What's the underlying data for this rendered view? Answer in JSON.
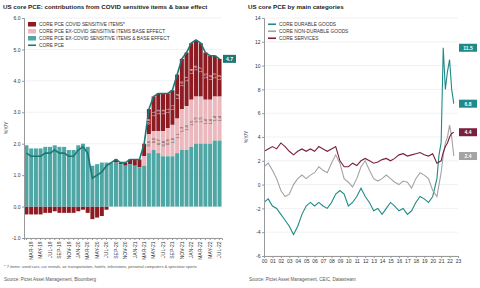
{
  "chart_data": [
    {
      "type": "bar",
      "title": "US core PCE: contributions from COVID sensitive items & base effect",
      "ylabel": "%Y/Y",
      "footnote": "* 7 items: used cars, car rentals, air transportation, hotels, televisions, personal computers & spectator sports",
      "source": "Source: Pictet Asset Management, Bloomberg",
      "stacked": true,
      "grid": true,
      "legend": "top-left",
      "data_labels": true,
      "ylim": [
        -1,
        6
      ],
      "yticks": [
        {
          "value": -1,
          "label": "-1.0"
        },
        {
          "value": 0,
          "label": "0.0"
        },
        {
          "value": 1,
          "label": "1.0"
        },
        {
          "value": 2,
          "label": "2.0"
        },
        {
          "value": 3,
          "label": "3.0"
        },
        {
          "value": 4,
          "label": "4.0"
        },
        {
          "value": 5,
          "label": "5.0"
        },
        {
          "value": 6,
          "label": "6.0"
        }
      ],
      "categories": [
        null,
        "MAR-19",
        null,
        "MAY-19",
        null,
        "JUL-19",
        null,
        "SEP-19",
        null,
        "NOV-19",
        null,
        "JAN-20",
        null,
        "MAR-20",
        null,
        "MAY-20",
        null,
        "JUL-20",
        null,
        "SEP-20",
        null,
        "NOV-20",
        null,
        "JAN-21",
        null,
        "MAR-21",
        null,
        "MAY-21",
        null,
        "JUL-21",
        null,
        "SEP-21",
        null,
        "NOV-21",
        null,
        "JAN-22",
        null,
        "MAR-22",
        null,
        "MAY-22",
        null,
        "JUL-22"
      ],
      "series": [
        {
          "name": "CORE PCE COVID SENSITIVE ITEMS*",
          "color": "#8e1b22",
          "type": "bar",
          "values": [
            -0.25,
            -0.25,
            -0.25,
            -0.25,
            -0.2,
            -0.2,
            -0.15,
            -0.2,
            -0.2,
            -0.2,
            -0.2,
            -0.15,
            -0.1,
            -0.2,
            -0.4,
            -0.35,
            -0.3,
            -0.1,
            0.0,
            0.1,
            0.05,
            0.1,
            0.15,
            0.2,
            0.25,
            0.4,
            0.8,
            1.1,
            1.2,
            1.2,
            1.1,
            1.1,
            1.4,
            1.6,
            1.7,
            1.8,
            1.8,
            1.7,
            1.5,
            1.4,
            1.3,
            1.2
          ],
          "value_labels": [
            null,
            null,
            null,
            null,
            null,
            null,
            null,
            null,
            null,
            null,
            null,
            null,
            null,
            null,
            null,
            null,
            null,
            null,
            null,
            null,
            null,
            null,
            null,
            null,
            null,
            null,
            "0.8",
            "1.1",
            "1.2",
            "1.2",
            "1.1",
            "1.1",
            "1.4",
            "1.6",
            "1.7",
            "1.8",
            "1.8",
            "1.7",
            "1.5",
            "1.4",
            "1.3",
            "1.2"
          ]
        },
        {
          "name": "CORE PCE EX-COVID SENSITIVE ITEMS BASE EFFECT",
          "color": "#eab8bd",
          "type": "bar",
          "values": [
            0,
            0,
            0,
            0,
            0,
            0,
            0,
            0,
            0,
            0,
            0,
            0,
            0,
            0,
            0,
            0,
            0,
            0,
            0,
            0,
            0,
            0,
            0,
            0,
            0,
            0.3,
            0.6,
            0.6,
            0.7,
            0.8,
            0.9,
            1.0,
            1.1,
            1.3,
            1.4,
            1.5,
            1.5,
            1.5,
            1.4,
            1.4,
            1.4,
            1.4
          ],
          "value_labels": [
            null,
            null,
            null,
            null,
            null,
            null,
            null,
            null,
            null,
            null,
            null,
            null,
            null,
            null,
            null,
            null,
            null,
            null,
            null,
            null,
            null,
            null,
            null,
            null,
            null,
            null,
            "0.6",
            "0.6",
            "0.7",
            "0.8",
            "0.9",
            "1.0",
            "1.1",
            "1.3",
            "1.4",
            "1.5",
            "1.5",
            "1.5",
            "1.4",
            "1.4",
            "1.4",
            "1.4"
          ]
        },
        {
          "name": "CORE PCE EX-COVID SENSITIVE ITEMS & BASE EFFECT",
          "color": "#4ea7a5",
          "type": "bar",
          "values": [
            1.95,
            1.85,
            1.85,
            1.85,
            1.9,
            1.9,
            1.95,
            1.9,
            1.9,
            1.8,
            1.8,
            1.95,
            2.0,
            1.9,
            1.3,
            1.35,
            1.4,
            1.4,
            1.4,
            1.4,
            1.35,
            1.3,
            1.35,
            1.3,
            1.25,
            1.3,
            1.7,
            1.8,
            1.7,
            1.6,
            1.6,
            1.6,
            1.7,
            1.8,
            1.8,
            1.9,
            2.0,
            2.0,
            2.0,
            2.0,
            2.1,
            2.1
          ]
        },
        {
          "name": "CORE PCE",
          "color": "#1d7774",
          "type": "line",
          "values": [
            1.7,
            1.6,
            1.6,
            1.6,
            1.7,
            1.7,
            1.8,
            1.7,
            1.7,
            1.6,
            1.6,
            1.8,
            1.9,
            1.7,
            0.9,
            1.0,
            1.1,
            1.3,
            1.4,
            1.5,
            1.4,
            1.4,
            1.5,
            1.5,
            1.5,
            2.0,
            3.1,
            3.5,
            3.6,
            3.6,
            3.6,
            3.7,
            4.2,
            4.7,
            4.9,
            5.2,
            5.3,
            5.2,
            4.9,
            4.8,
            4.8,
            4.7
          ]
        }
      ],
      "annotations": [
        {
          "text": "4.7",
          "y": 4.7,
          "color": "#1d7774"
        }
      ]
    },
    {
      "type": "line",
      "title": "US core PCE by main categories",
      "ylabel": "%Y/Y",
      "source": "Source: Pictet Asset Management, CEIC, Datastream",
      "grid": true,
      "legend": "top-left",
      "xlim": [
        2000,
        2023
      ],
      "xticks": [
        {
          "value": 2000,
          "label": "00"
        },
        {
          "value": 2001,
          "label": "01"
        },
        {
          "value": 2002,
          "label": "02"
        },
        {
          "value": 2003,
          "label": "03"
        },
        {
          "value": 2004,
          "label": "04"
        },
        {
          "value": 2005,
          "label": "05"
        },
        {
          "value": 2006,
          "label": "06"
        },
        {
          "value": 2007,
          "label": "07"
        },
        {
          "value": 2008,
          "label": "08"
        },
        {
          "value": 2009,
          "label": "09"
        },
        {
          "value": 2010,
          "label": "10"
        },
        {
          "value": 2011,
          "label": "11"
        },
        {
          "value": 2012,
          "label": "12"
        },
        {
          "value": 2013,
          "label": "13"
        },
        {
          "value": 2014,
          "label": "14"
        },
        {
          "value": 2015,
          "label": "15"
        },
        {
          "value": 2016,
          "label": "16"
        },
        {
          "value": 2017,
          "label": "17"
        },
        {
          "value": 2018,
          "label": "18"
        },
        {
          "value": 2019,
          "label": "19"
        },
        {
          "value": 2020,
          "label": "20"
        },
        {
          "value": 2021,
          "label": "21"
        },
        {
          "value": 2022,
          "label": "22"
        },
        {
          "value": 2023,
          "label": "23"
        }
      ],
      "ylim": [
        -6,
        14
      ],
      "yticks": [
        -6,
        -4,
        -2,
        0,
        2,
        4,
        6,
        8,
        10,
        12,
        14
      ],
      "x": [
        2000,
        2000.5,
        2001,
        2001.5,
        2002,
        2002.5,
        2003,
        2003.5,
        2004,
        2004.5,
        2005,
        2005.5,
        2006,
        2006.5,
        2007,
        2007.5,
        2008,
        2008.5,
        2009,
        2009.5,
        2010,
        2010.5,
        2011,
        2011.5,
        2012,
        2012.5,
        2013,
        2013.5,
        2014,
        2014.5,
        2015,
        2015.5,
        2016,
        2016.5,
        2017,
        2017.5,
        2018,
        2018.5,
        2019,
        2019.5,
        2020,
        2020.5,
        2020.75,
        2021,
        2021.25,
        2021.5,
        2021.75,
        2022,
        2022.25,
        2022.5
      ],
      "series": [
        {
          "name": "CORE DURABLE GOODS",
          "color": "#1f8a87",
          "values": [
            -1.5,
            -1.2,
            -1.8,
            -2.0,
            -2.5,
            -3.0,
            -3.5,
            -4.2,
            -3.5,
            -2.5,
            -1.8,
            -1.5,
            -1.8,
            -1.5,
            -1.8,
            -2.0,
            -1.5,
            -0.8,
            -0.5,
            -0.8,
            -1.8,
            -1.5,
            -1.0,
            -0.3,
            -1.0,
            -1.5,
            -2.2,
            -2.0,
            -2.5,
            -2.0,
            -1.5,
            -1.8,
            -2.2,
            -2.0,
            -2.5,
            -2.2,
            -1.5,
            -1.0,
            -1.2,
            -1.5,
            -1.0,
            0.5,
            2.5,
            3.5,
            11.5,
            8.0,
            9.5,
            10.5,
            8.0,
            6.8
          ]
        },
        {
          "name": "CORE NON-DURABLE GOODS",
          "color": "#a3a3a3",
          "values": [
            1.5,
            1.8,
            1.2,
            0.5,
            -0.5,
            -1.0,
            -0.8,
            0.0,
            0.5,
            0.8,
            0.5,
            0.8,
            1.0,
            1.5,
            1.2,
            1.0,
            1.8,
            2.5,
            1.8,
            0.5,
            0.2,
            -0.2,
            0.5,
            1.5,
            2.0,
            1.2,
            0.5,
            0.3,
            0.5,
            0.8,
            0.5,
            0.2,
            0.0,
            0.3,
            0.2,
            -0.3,
            0.5,
            1.0,
            0.8,
            0.5,
            -0.5,
            -1.0,
            0.0,
            1.0,
            2.5,
            3.5,
            4.0,
            5.0,
            4.0,
            2.4
          ]
        },
        {
          "name": "CORE SERVICES",
          "color": "#7a1f3d",
          "values": [
            2.8,
            3.0,
            3.2,
            3.0,
            3.5,
            3.2,
            2.8,
            2.5,
            2.8,
            3.0,
            2.8,
            3.0,
            2.8,
            3.2,
            3.0,
            2.8,
            3.0,
            3.2,
            2.0,
            1.5,
            1.5,
            1.8,
            1.6,
            2.0,
            2.2,
            2.0,
            1.8,
            1.9,
            2.1,
            2.2,
            2.0,
            2.2,
            2.5,
            2.6,
            2.4,
            2.5,
            2.6,
            2.7,
            2.5,
            2.4,
            2.6,
            1.8,
            1.9,
            2.0,
            2.7,
            3.2,
            3.5,
            4.0,
            4.3,
            4.4
          ]
        }
      ],
      "annotations": [
        {
          "text": "11.5",
          "y": 11.5,
          "color": "#1f8a87"
        },
        {
          "text": "6.8",
          "y": 6.8,
          "color": "#1f8a87"
        },
        {
          "text": "4.4",
          "y": 4.4,
          "color": "#7a1f3d"
        },
        {
          "text": "2.4",
          "y": 2.4,
          "color": "#a3a3a3"
        }
      ]
    }
  ]
}
